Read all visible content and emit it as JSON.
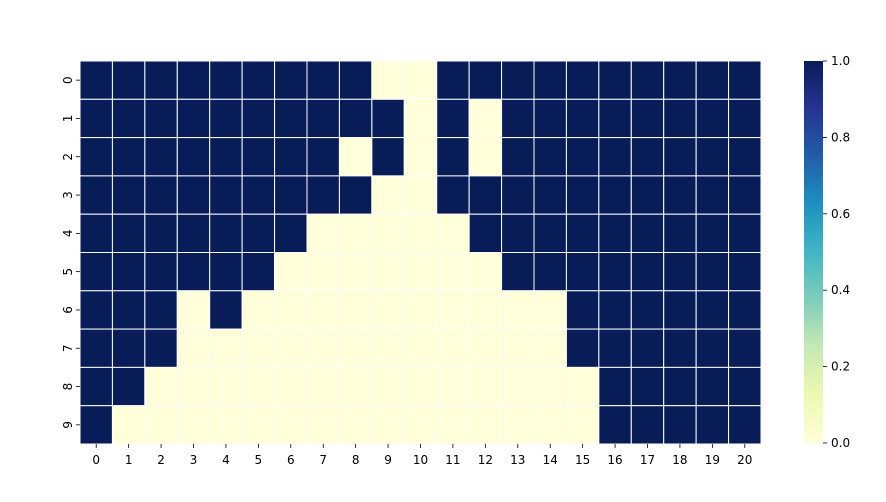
{
  "chart_data": {
    "type": "heatmap",
    "title": "",
    "xlabel": "",
    "ylabel": "",
    "x_ticks": [
      "0",
      "1",
      "2",
      "3",
      "4",
      "5",
      "6",
      "7",
      "8",
      "9",
      "10",
      "11",
      "12",
      "13",
      "14",
      "15",
      "16",
      "17",
      "18",
      "19",
      "20"
    ],
    "y_ticks": [
      "0",
      "1",
      "2",
      "3",
      "4",
      "5",
      "6",
      "7",
      "8",
      "9"
    ],
    "values": [
      [
        1,
        1,
        1,
        1,
        1,
        1,
        1,
        1,
        1,
        0,
        0,
        1,
        1,
        1,
        1,
        1,
        1,
        1,
        1,
        1,
        1
      ],
      [
        1,
        1,
        1,
        1,
        1,
        1,
        1,
        1,
        1,
        1,
        0,
        1,
        0,
        1,
        1,
        1,
        1,
        1,
        1,
        1,
        1
      ],
      [
        1,
        1,
        1,
        1,
        1,
        1,
        1,
        1,
        0,
        1,
        0,
        1,
        0,
        1,
        1,
        1,
        1,
        1,
        1,
        1,
        1
      ],
      [
        1,
        1,
        1,
        1,
        1,
        1,
        1,
        1,
        1,
        0,
        0,
        1,
        1,
        1,
        1,
        1,
        1,
        1,
        1,
        1,
        1
      ],
      [
        1,
        1,
        1,
        1,
        1,
        1,
        1,
        0,
        0,
        0,
        0,
        0,
        1,
        1,
        1,
        1,
        1,
        1,
        1,
        1,
        1
      ],
      [
        1,
        1,
        1,
        1,
        1,
        1,
        0,
        0,
        0,
        0,
        0,
        0,
        0,
        1,
        1,
        1,
        1,
        1,
        1,
        1,
        1
      ],
      [
        1,
        1,
        1,
        0,
        1,
        0,
        0,
        0,
        0,
        0,
        0,
        0,
        0,
        0,
        0,
        1,
        1,
        1,
        1,
        1,
        1
      ],
      [
        1,
        1,
        1,
        0,
        0,
        0,
        0,
        0,
        0,
        0,
        0,
        0,
        0,
        0,
        0,
        1,
        1,
        1,
        1,
        1,
        1
      ],
      [
        1,
        1,
        0,
        0,
        0,
        0,
        0,
        0,
        0,
        0,
        0,
        0,
        0,
        0,
        0,
        0,
        1,
        1,
        1,
        1,
        1
      ],
      [
        1,
        0,
        0,
        0,
        0,
        0,
        0,
        0,
        0,
        0,
        0,
        0,
        0,
        0,
        0,
        0,
        1,
        1,
        1,
        1,
        1
      ]
    ],
    "colormap": "YlGnBu",
    "color_low": "#ffffd9",
    "color_high": "#081d58",
    "vmin": 0,
    "vmax": 1,
    "colorbar_ticks": [
      "0.0",
      "0.2",
      "0.4",
      "0.6",
      "0.8",
      "1.0"
    ],
    "cell_border_color": "#ffffff"
  }
}
